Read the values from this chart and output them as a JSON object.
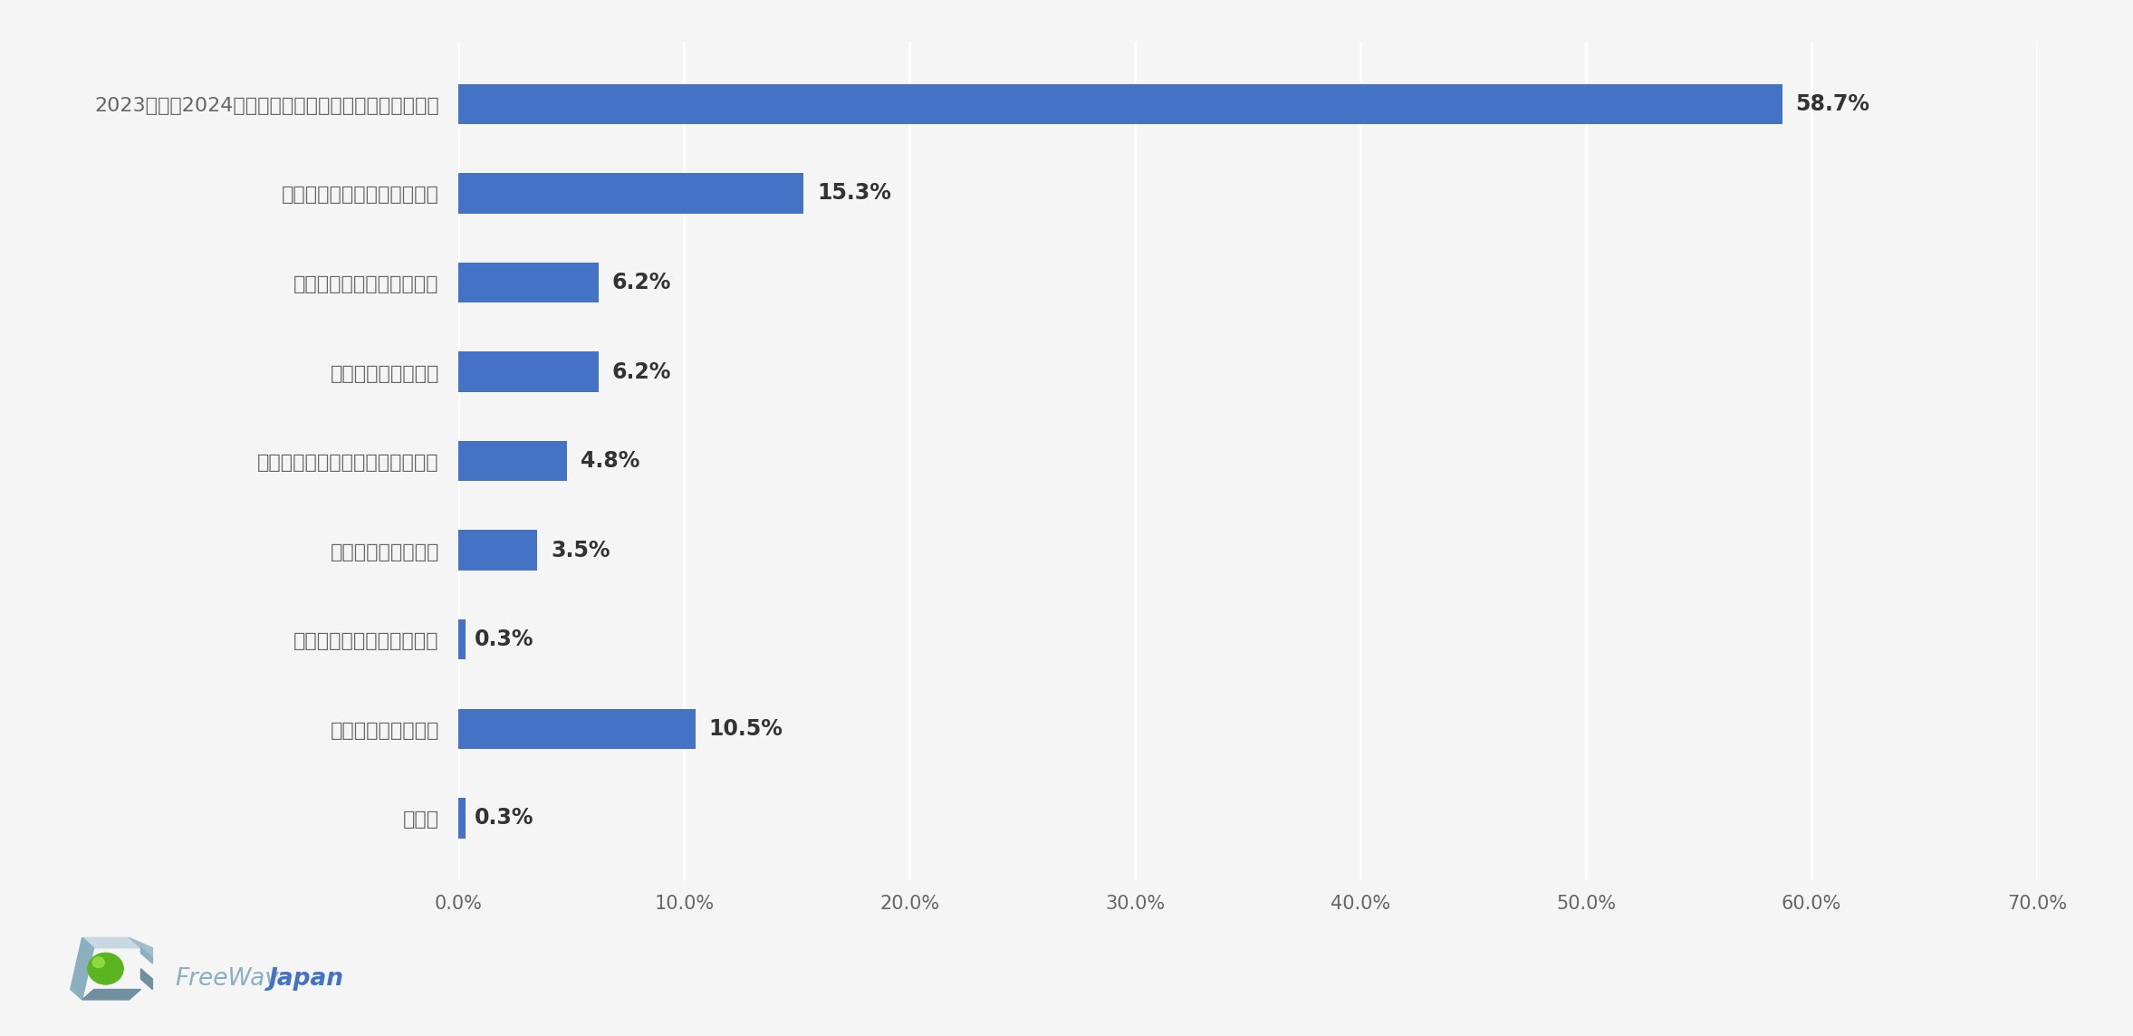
{
  "categories": [
    "2023年度も2024年度上期も採用活動を実施しなかった",
    "採用人数を増減させなかった",
    "採用者の年収を引き上げた",
    "採用人数を増やした",
    "採用者の年収を増減させなかった",
    "採用人数を減らした",
    "採用者の年収を引き下げた",
    "その他（自由回答）",
    "無回答"
  ],
  "values": [
    58.7,
    15.3,
    6.2,
    6.2,
    4.8,
    3.5,
    0.3,
    10.5,
    0.3
  ],
  "labels": [
    "58.7%",
    "15.3%",
    "6.2%",
    "6.2%",
    "4.8%",
    "3.5%",
    "0.3%",
    "10.5%",
    "0.3%"
  ],
  "bar_color": "#4472C4",
  "background_color": "#f5f5f5",
  "text_color": "#666666",
  "label_color": "#333333",
  "xlim": [
    0,
    70
  ],
  "xticks": [
    0,
    10,
    20,
    30,
    40,
    50,
    60,
    70
  ],
  "xtick_labels": [
    "0.0%",
    "10.0%",
    "20.0%",
    "30.0%",
    "40.0%",
    "50.0%",
    "60.0%",
    "70.0%"
  ],
  "grid_color": "#ffffff",
  "freeway_color": "#8aafbe",
  "japan_color": "#4472C4"
}
